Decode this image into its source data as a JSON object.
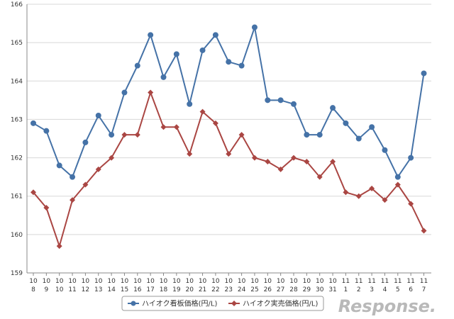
{
  "chart_data": {
    "type": "line",
    "categories": [
      [
        "10",
        "8"
      ],
      [
        "10",
        "9"
      ],
      [
        "10",
        "10"
      ],
      [
        "10",
        "11"
      ],
      [
        "10",
        "12"
      ],
      [
        "10",
        "13"
      ],
      [
        "10",
        "14"
      ],
      [
        "10",
        "15"
      ],
      [
        "10",
        "16"
      ],
      [
        "10",
        "17"
      ],
      [
        "10",
        "18"
      ],
      [
        "10",
        "19"
      ],
      [
        "10",
        "20"
      ],
      [
        "10",
        "21"
      ],
      [
        "10",
        "22"
      ],
      [
        "10",
        "23"
      ],
      [
        "10",
        "24"
      ],
      [
        "10",
        "25"
      ],
      [
        "10",
        "26"
      ],
      [
        "10",
        "27"
      ],
      [
        "10",
        "28"
      ],
      [
        "10",
        "29"
      ],
      [
        "10",
        "30"
      ],
      [
        "10",
        "31"
      ],
      [
        "11",
        "1"
      ],
      [
        "11",
        "2"
      ],
      [
        "11",
        "3"
      ],
      [
        "11",
        "4"
      ],
      [
        "11",
        "5"
      ],
      [
        "11",
        "6"
      ],
      [
        "11",
        "7"
      ]
    ],
    "ylim": [
      159,
      166
    ],
    "yticks": [
      "159",
      "160",
      "161",
      "162",
      "163",
      "164",
      "165",
      "166"
    ],
    "grid": true,
    "legend_position": "bottom",
    "series": [
      {
        "name": "ハイオク看板価格(円/L)",
        "color": "#4572a7",
        "marker": "circle",
        "values": [
          162.9,
          162.7,
          161.8,
          161.5,
          162.4,
          163.1,
          162.6,
          163.7,
          164.4,
          165.2,
          164.1,
          164.7,
          163.4,
          164.8,
          165.2,
          164.5,
          164.4,
          165.4,
          163.5,
          163.5,
          163.4,
          162.6,
          162.6,
          163.3,
          162.9,
          162.5,
          162.8,
          162.2,
          161.5,
          162.0,
          164.2
        ]
      },
      {
        "name": "ハイオク実売価格(円/L)",
        "color": "#aa4643",
        "marker": "diamond",
        "values": [
          161.1,
          160.7,
          159.7,
          160.9,
          161.3,
          161.7,
          162.0,
          162.6,
          162.6,
          163.7,
          162.8,
          162.8,
          162.1,
          163.2,
          162.9,
          162.1,
          162.6,
          162.0,
          161.9,
          161.7,
          162.0,
          161.9,
          161.5,
          161.9,
          161.1,
          161.0,
          161.2,
          160.9,
          161.3,
          160.8,
          160.1
        ]
      }
    ]
  },
  "watermark": {
    "text": "Response."
  }
}
